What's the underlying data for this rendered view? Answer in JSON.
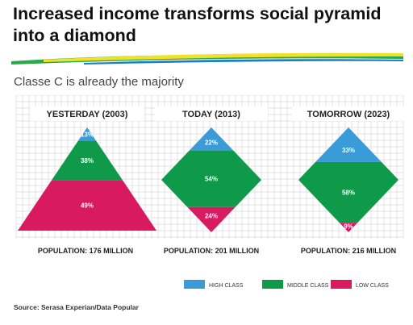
{
  "header": {
    "title_line1": "Increased income transforms social pyramid",
    "title_line2": "into a diamond",
    "subtitle": "Classe C is already the majority"
  },
  "source": "Source: Serasa Experian/Data Popular",
  "colors": {
    "high": "#3a9bd9",
    "middle": "#0f9a4a",
    "low": "#d81b60",
    "grid": "#e3e3e3",
    "brush_green": "#2aa84a",
    "brush_yellow": "#f2e12a",
    "brush_blue": "#1a7fc4"
  },
  "chart_data": {
    "type": "stacked-shape",
    "categories": [
      "YESTERDAY (2003)",
      "TODAY (2013)",
      "TOMORROW (2023)"
    ],
    "shapes": [
      "pyramid",
      "diamond",
      "diamond"
    ],
    "populations": [
      "POPULATION: 176 MILLION",
      "POPULATION: 201 MILLION",
      "POPULATION: 216 MILLION"
    ],
    "series": [
      {
        "name": "HIGH CLASS",
        "values": [
          13,
          22,
          33
        ]
      },
      {
        "name": "MIDDLE CLASS",
        "values": [
          38,
          54,
          58
        ]
      },
      {
        "name": "LOW CLASS",
        "values": [
          49,
          24,
          9
        ]
      }
    ],
    "unit": "%",
    "legend_position": "bottom-right"
  }
}
